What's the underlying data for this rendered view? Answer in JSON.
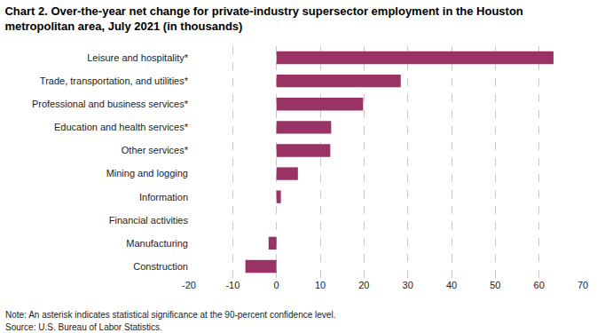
{
  "chart_data": {
    "type": "bar",
    "orientation": "horizontal",
    "title": "Chart 2. Over-the-year net change for private-industry supersector employment in the Houston\nmetropolitan area, July 2021 (in thousands)",
    "categories": [
      "Leisure and hospitality*",
      "Trade, transportation, and utilities*",
      "Professional and business services*",
      "Education and health services*",
      "Other services*",
      "Mining and logging",
      "Information",
      "Financial activities",
      "Manufacturing",
      "Construction"
    ],
    "values": [
      63.3,
      28.4,
      19.8,
      12.5,
      12.3,
      4.9,
      1.0,
      0,
      -1.8,
      -7.1
    ],
    "color": "#993366",
    "xlim": [
      -20,
      70
    ],
    "xticks": [
      -20,
      -10,
      0,
      10,
      20,
      30,
      40,
      50,
      60,
      70
    ],
    "grid": true,
    "annotations": [
      "Note: An asterisk indicates statistical significance at the 90-percent confidence level.",
      "Source: U.S. Bureau of Labor Statistics."
    ]
  }
}
